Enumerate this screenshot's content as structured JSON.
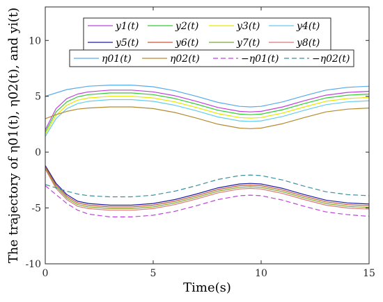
{
  "chart_data": {
    "type": "line",
    "xlabel": "Time(s)",
    "ylabel": "The trajectory of η01(t), η02(t), and yi(t)",
    "xlim": [
      0,
      15
    ],
    "ylim": [
      -10,
      13
    ],
    "xticks": [
      "0",
      "5",
      "10",
      "15"
    ],
    "yticks": [
      "-10",
      "-5",
      "0",
      "5",
      "10"
    ],
    "grid": false,
    "legend_placement": "top",
    "series": [
      {
        "name": "y1(t)",
        "color": "#c040e0",
        "dash": "solid",
        "x": [
          0,
          0.5,
          1,
          1.5,
          2,
          3,
          4,
          5,
          6,
          7,
          8,
          9,
          9.5,
          10,
          11,
          12,
          13,
          14,
          15
        ],
        "y": [
          2.0,
          3.9,
          4.8,
          5.2,
          5.4,
          5.55,
          5.55,
          5.4,
          5.05,
          4.55,
          4.0,
          3.65,
          3.6,
          3.65,
          4.05,
          4.6,
          5.1,
          5.35,
          5.45
        ]
      },
      {
        "name": "y2(t)",
        "color": "#33cc33",
        "dash": "solid",
        "x": [
          0,
          0.5,
          1,
          1.5,
          2,
          3,
          4,
          5,
          6,
          7,
          8,
          9,
          9.5,
          10,
          11,
          12,
          13,
          14,
          15
        ],
        "y": [
          1.8,
          3.6,
          4.5,
          4.95,
          5.15,
          5.3,
          5.3,
          5.15,
          4.8,
          4.3,
          3.75,
          3.4,
          3.35,
          3.4,
          3.8,
          4.35,
          4.85,
          5.1,
          5.2
        ]
      },
      {
        "name": "y3(t)",
        "color": "#e6e600",
        "dash": "solid",
        "x": [
          0,
          0.5,
          1,
          1.5,
          2,
          3,
          4,
          5,
          6,
          7,
          8,
          9,
          9.5,
          10,
          11,
          12,
          13,
          14,
          15
        ],
        "y": [
          1.6,
          3.3,
          4.2,
          4.65,
          4.85,
          5.0,
          5.0,
          4.85,
          4.5,
          4.0,
          3.45,
          3.1,
          3.05,
          3.1,
          3.5,
          4.05,
          4.55,
          4.8,
          4.9
        ]
      },
      {
        "name": "y4(t)",
        "color": "#66ccee",
        "dash": "solid",
        "x": [
          0,
          0.5,
          1,
          1.5,
          2,
          3,
          4,
          5,
          6,
          7,
          8,
          9,
          9.5,
          10,
          11,
          12,
          13,
          14,
          15
        ],
        "y": [
          1.4,
          3.0,
          3.9,
          4.35,
          4.55,
          4.7,
          4.7,
          4.55,
          4.2,
          3.7,
          3.15,
          2.8,
          2.75,
          2.8,
          3.2,
          3.75,
          4.25,
          4.5,
          4.6
        ]
      },
      {
        "name": "y5(t)",
        "color": "#1a1aa6",
        "dash": "solid",
        "x": [
          0,
          0.5,
          1,
          1.5,
          2,
          3,
          4,
          5,
          6,
          7,
          8,
          9,
          9.5,
          10,
          11,
          12,
          13,
          14,
          15
        ],
        "y": [
          -1.2,
          -2.8,
          -3.8,
          -4.4,
          -4.6,
          -4.75,
          -4.75,
          -4.6,
          -4.25,
          -3.75,
          -3.2,
          -2.85,
          -2.8,
          -2.85,
          -3.25,
          -3.8,
          -4.3,
          -4.55,
          -4.65
        ]
      },
      {
        "name": "y6(t)",
        "color": "#cc5533",
        "dash": "solid",
        "x": [
          0,
          0.5,
          1,
          1.5,
          2,
          3,
          4,
          5,
          6,
          7,
          8,
          9,
          9.5,
          10,
          11,
          12,
          13,
          14,
          15
        ],
        "y": [
          -1.3,
          -2.95,
          -3.95,
          -4.55,
          -4.75,
          -4.9,
          -4.9,
          -4.75,
          -4.4,
          -3.9,
          -3.35,
          -3.0,
          -2.95,
          -3.0,
          -3.4,
          -3.95,
          -4.45,
          -4.7,
          -4.8
        ]
      },
      {
        "name": "y7(t)",
        "color": "#77aa33",
        "dash": "solid",
        "x": [
          0,
          0.5,
          1,
          1.5,
          2,
          3,
          4,
          5,
          6,
          7,
          8,
          9,
          9.5,
          10,
          11,
          12,
          13,
          14,
          15
        ],
        "y": [
          -1.4,
          -3.1,
          -4.1,
          -4.7,
          -4.9,
          -5.05,
          -5.05,
          -4.9,
          -4.55,
          -4.05,
          -3.5,
          -3.15,
          -3.1,
          -3.15,
          -3.55,
          -4.1,
          -4.6,
          -4.85,
          -4.95
        ]
      },
      {
        "name": "y8(t)",
        "color": "#dd7777",
        "dash": "solid",
        "x": [
          0,
          0.5,
          1,
          1.5,
          2,
          3,
          4,
          5,
          6,
          7,
          8,
          9,
          9.5,
          10,
          11,
          12,
          13,
          14,
          15
        ],
        "y": [
          -1.5,
          -3.25,
          -4.25,
          -4.85,
          -5.05,
          -5.2,
          -5.2,
          -5.05,
          -4.7,
          -4.2,
          -3.65,
          -3.3,
          -3.25,
          -3.3,
          -3.7,
          -4.25,
          -4.75,
          -5.0,
          -5.1
        ]
      },
      {
        "name": "η01(t)",
        "color": "#55aaee",
        "dash": "solid",
        "x": [
          0,
          1,
          2,
          3,
          4,
          5,
          6,
          7,
          8,
          9,
          9.5,
          10,
          11,
          12,
          13,
          14,
          15
        ],
        "y": [
          5.0,
          5.6,
          5.9,
          6.0,
          6.0,
          5.85,
          5.5,
          5.0,
          4.45,
          4.1,
          4.05,
          4.1,
          4.5,
          5.05,
          5.55,
          5.8,
          5.9
        ]
      },
      {
        "name": "η02(t)",
        "color": "#b38a2e",
        "dash": "solid",
        "x": [
          0,
          0.5,
          1,
          1.5,
          2,
          3,
          4,
          5,
          6,
          7,
          8,
          9,
          9.5,
          10,
          11,
          12,
          13,
          14,
          15
        ],
        "y": [
          3.0,
          3.35,
          3.65,
          3.85,
          3.95,
          4.05,
          4.05,
          3.9,
          3.55,
          3.05,
          2.5,
          2.15,
          2.1,
          2.15,
          2.55,
          3.1,
          3.6,
          3.85,
          3.95
        ]
      },
      {
        "name": "−η01(t)",
        "color": "#c040e0",
        "dash": "dashed",
        "x": [
          0,
          0.5,
          1,
          1.5,
          2,
          3,
          4,
          5,
          6,
          7,
          8,
          9,
          9.5,
          10,
          11,
          12,
          13,
          14,
          15
        ],
        "y": [
          -3.0,
          -3.8,
          -4.6,
          -5.2,
          -5.55,
          -5.8,
          -5.8,
          -5.65,
          -5.3,
          -4.8,
          -4.25,
          -3.9,
          -3.85,
          -3.9,
          -4.3,
          -4.85,
          -5.35,
          -5.6,
          -5.75
        ]
      },
      {
        "name": "−η02(t)",
        "color": "#3a8f9e",
        "dash": "dashed",
        "x": [
          0,
          0.5,
          1,
          1.5,
          2,
          3,
          4,
          5,
          6,
          7,
          8,
          9,
          9.5,
          10,
          11,
          12,
          13,
          14,
          15
        ],
        "y": [
          -2.9,
          -3.2,
          -3.5,
          -3.75,
          -3.9,
          -4.0,
          -4.0,
          -3.85,
          -3.5,
          -3.0,
          -2.45,
          -2.1,
          -2.05,
          -2.1,
          -2.5,
          -3.05,
          -3.55,
          -3.8,
          -3.9
        ]
      }
    ]
  }
}
